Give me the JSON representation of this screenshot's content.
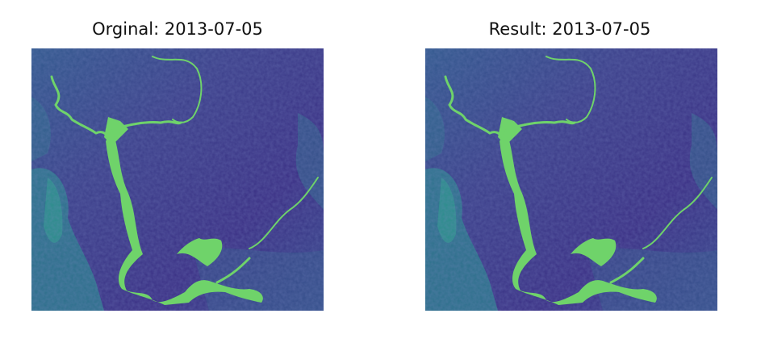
{
  "panels": [
    {
      "title": "Orginal: 2013-07-05"
    },
    {
      "title": "Result: 2013-07-05"
    }
  ],
  "colors": {
    "background": "#ffffff",
    "land_dark": "#3b2f84",
    "land_mid": "#36508c",
    "land_teal": "#2a7a8c",
    "water": "#6fd36a"
  }
}
